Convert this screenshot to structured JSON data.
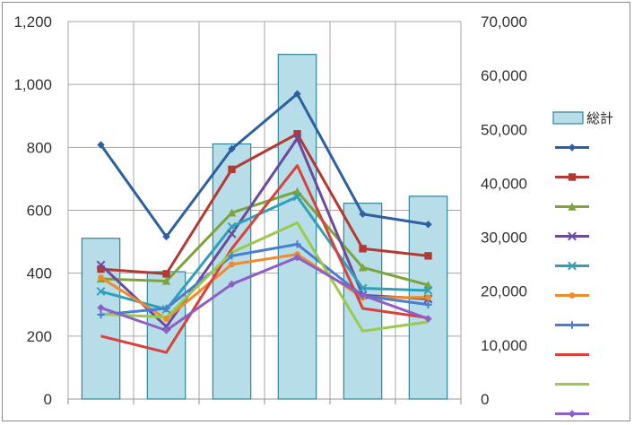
{
  "chart_data": {
    "type": "bar+line",
    "title": "",
    "categories": [
      "",
      "",
      "",
      "",
      "",
      ""
    ],
    "bar_series": {
      "name": "総計",
      "axis": "right",
      "values": [
        29800,
        23600,
        47300,
        63900,
        36300,
        37600
      ],
      "color": "#b7dde8",
      "border": "#31849b"
    },
    "line_series": [
      {
        "name": "",
        "axis": "left",
        "marker": "diamond",
        "color": "#2e5f9e",
        "values": [
          808,
          516,
          795,
          970,
          588,
          555
        ]
      },
      {
        "name": "",
        "axis": "left",
        "marker": "square",
        "color": "#b33a34",
        "values": [
          413,
          398,
          730,
          843,
          478,
          455
        ]
      },
      {
        "name": "",
        "axis": "left",
        "marker": "triangle",
        "color": "#7da33a",
        "values": [
          382,
          375,
          592,
          660,
          418,
          362
        ]
      },
      {
        "name": "",
        "axis": "left",
        "marker": "x",
        "color": "#6c4a9c",
        "values": [
          426,
          230,
          525,
          828,
          330,
          318
        ]
      },
      {
        "name": "",
        "axis": "left",
        "marker": "x",
        "color": "#2fa0b8",
        "values": [
          342,
          285,
          548,
          643,
          352,
          345
        ]
      },
      {
        "name": "",
        "axis": "left",
        "marker": "circle",
        "color": "#ef8b2c",
        "values": [
          386,
          255,
          428,
          460,
          322,
          323
        ]
      },
      {
        "name": "",
        "axis": "left",
        "marker": "plus",
        "color": "#4a7ed0",
        "values": [
          268,
          288,
          455,
          492,
          328,
          300
        ]
      },
      {
        "name": "",
        "axis": "left",
        "marker": "none",
        "color": "#d9423c",
        "values": [
          200,
          148,
          478,
          742,
          288,
          258
        ]
      },
      {
        "name": "",
        "axis": "left",
        "marker": "none",
        "color": "#9bca4a",
        "values": [
          270,
          260,
          466,
          560,
          216,
          245
        ]
      },
      {
        "name": "",
        "axis": "left",
        "marker": "diamond",
        "color": "#8e5fc4",
        "values": [
          290,
          218,
          365,
          450,
          330,
          255
        ]
      }
    ],
    "y_left": {
      "min": 0,
      "max": 1200,
      "ticks": [
        "0",
        "200",
        "400",
        "600",
        "800",
        "1,000",
        "1,200"
      ]
    },
    "y_right": {
      "min": 0,
      "max": 70000,
      "ticks": [
        "0",
        "10,000",
        "20,000",
        "30,000",
        "40,000",
        "50,000",
        "60,000",
        "70,000"
      ]
    },
    "grid": true,
    "legend": {
      "position": "right",
      "entries": [
        "総計",
        "",
        "",
        "",
        "",
        "",
        "",
        "",
        "",
        "",
        ""
      ]
    }
  }
}
